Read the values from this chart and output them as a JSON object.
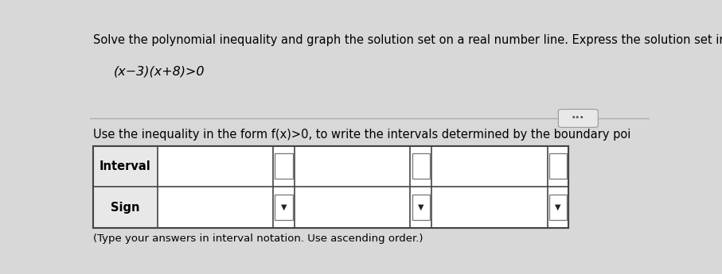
{
  "line1": "Solve the polynomial inequality and graph the solution set on a real number line. Express the solution set in in",
  "line2": "(x−3)(x+8)>0",
  "line3": "Use the inequality in the form f(x)>0, to write the intervals determined by the boundary poi",
  "line4": "(Type your answers in interval notation. Use ascending order.)",
  "row_labels": [
    "Interval",
    "Sign"
  ],
  "bg_color": "#d8d8d8",
  "white": "#ffffff",
  "light_gray": "#e8e8e8",
  "text_color": "#000000",
  "table_border_color": "#444444",
  "dots_button_color": "#e8e8e8",
  "title_fontsize": 10.5,
  "equation_fontsize": 11.5,
  "table_label_fontsize": 10.5,
  "note_fontsize": 9.5
}
